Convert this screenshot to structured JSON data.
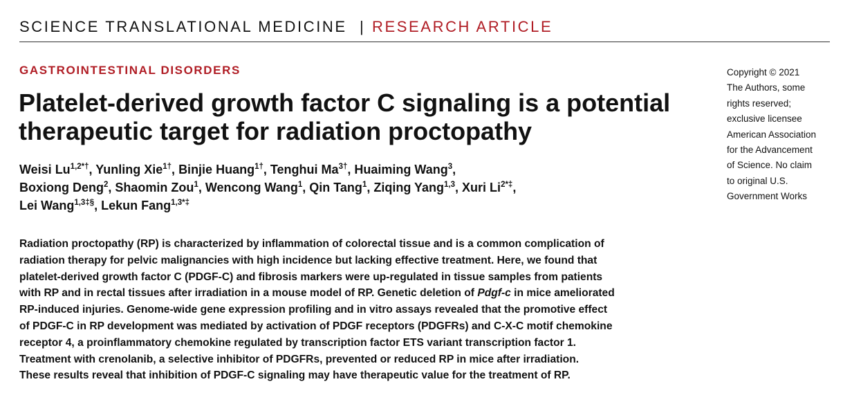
{
  "masthead": {
    "journal": "SCIENCE TRANSLATIONAL MEDICINE",
    "separator": "|",
    "article_type": "RESEARCH ARTICLE"
  },
  "category": "GASTROINTESTINAL DISORDERS",
  "title_lines": [
    "Platelet-derived growth factor C signaling is a potential",
    "therapeutic target for radiation proctopathy"
  ],
  "authors": [
    {
      "name": "Weisi Lu",
      "sup": "1,2*†",
      "sep": ", "
    },
    {
      "name": "Yunling Xie",
      "sup": "1†",
      "sep": ", "
    },
    {
      "name": "Binjie Huang",
      "sup": "1†",
      "sep": ", "
    },
    {
      "name": "Tenghui Ma",
      "sup": "3†",
      "sep": ", "
    },
    {
      "name": "Huaiming Wang",
      "sup": "3",
      "sep": ","
    },
    {
      "name": "Boxiong Deng",
      "sup": "2",
      "sep": ", "
    },
    {
      "name": "Shaomin Zou",
      "sup": "1",
      "sep": ", "
    },
    {
      "name": "Wencong Wang",
      "sup": "1",
      "sep": ", "
    },
    {
      "name": "Qin Tang",
      "sup": "1",
      "sep": ", "
    },
    {
      "name": "Ziqing Yang",
      "sup": "1,3",
      "sep": ", "
    },
    {
      "name": "Xuri Li",
      "sup": "2*‡",
      "sep": ","
    },
    {
      "name": "Lei Wang",
      "sup": "1,3‡§",
      "sep": ", "
    },
    {
      "name": "Lekun Fang",
      "sup": "1,3*‡",
      "sep": ""
    }
  ],
  "abstract": {
    "l1": "Radiation proctopathy (RP) is characterized by inflammation of colorectal tissue and is a common complication of",
    "l2": "radiation therapy for pelvic malignancies with high incidence but lacking effective treatment. Here, we found that",
    "l3": "platelet-derived growth factor C (PDGF-C) and fibrosis markers were up-regulated in tissue samples from patients",
    "l4": "with RP and in rectal tissues after irradiation in a mouse model of RP. Genetic deletion of ",
    "l4_italic": "Pdgf-c",
    "l4_end": " in mice ameliorated",
    "l5": "RP-induced injuries. Genome-wide gene expression profiling and in vitro assays revealed that the promotive effect",
    "l6": "of PDGF-C in RP development was mediated by activation of PDGF receptors (PDGFRs) and C-X-C motif chemokine",
    "l7": "receptor 4, a proinflammatory chemokine regulated by transcription factor ETS variant transcription factor 1.",
    "l8": "Treatment with crenolanib, a selective inhibitor of PDGFRs, prevented or reduced RP in mice after irradiation.",
    "l9": "These results reveal that inhibition of PDGF-C signaling may have therapeutic value for the treatment of RP."
  },
  "copyright_lines": [
    "Copyright © 2021",
    "The Authors, some",
    "rights reserved;",
    "exclusive licensee",
    "American Association",
    "for the Advancement",
    "of Science. No claim",
    "to original U.S.",
    "Government Works"
  ],
  "colors": {
    "accent": "#b01c24",
    "text": "#111111",
    "rule": "#333333"
  }
}
